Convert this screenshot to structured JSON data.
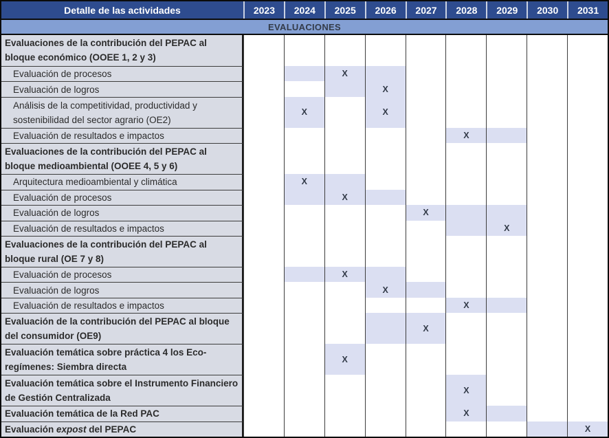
{
  "table": {
    "corner_label": "Detalle de las actividades",
    "years": [
      "2023",
      "2024",
      "2025",
      "2026",
      "2027",
      "2028",
      "2029",
      "2030",
      "2031"
    ],
    "banner": "EVALUACIONES",
    "mark": "X",
    "rows": [
      {
        "label": "Evaluaciones de la contribución del PEPAC al bloque económico (OOEE 1, 2 y 3)",
        "bold": true,
        "tall": true,
        "indent": false,
        "shaded": [],
        "marks": []
      },
      {
        "label": "Evaluación de procesos",
        "bold": false,
        "tall": false,
        "indent": true,
        "shaded": [
          "2024",
          "2025",
          "2026"
        ],
        "marks": [
          "2025"
        ]
      },
      {
        "label": "Evaluación de logros",
        "bold": false,
        "tall": false,
        "indent": true,
        "shaded": [
          "2025",
          "2026"
        ],
        "marks": [
          "2026"
        ]
      },
      {
        "label": "Análisis de la competitividad, productividad y sostenibilidad del sector agrario (OE2)",
        "bold": false,
        "tall": true,
        "indent": true,
        "shaded": [
          "2024",
          "2026"
        ],
        "marks": [
          "2024",
          "2026"
        ]
      },
      {
        "label": "Evaluación de resultados e impactos",
        "bold": false,
        "tall": false,
        "indent": true,
        "shaded": [
          "2028",
          "2029"
        ],
        "marks": [
          "2028"
        ]
      },
      {
        "label": "Evaluaciones de la contribución del PEPAC al bloque medioambiental (OOEE 4, 5 y 6)",
        "bold": true,
        "tall": true,
        "indent": false,
        "shaded": [],
        "marks": []
      },
      {
        "label": "Arquitectura medioambiental y climática",
        "bold": false,
        "tall": false,
        "indent": true,
        "shaded": [
          "2024",
          "2025"
        ],
        "marks": [
          "2024"
        ]
      },
      {
        "label": "Evaluación de procesos",
        "bold": false,
        "tall": false,
        "indent": true,
        "shaded": [
          "2024",
          "2025",
          "2026"
        ],
        "marks": [
          "2025"
        ]
      },
      {
        "label": "Evaluación de logros",
        "bold": false,
        "tall": false,
        "indent": true,
        "shaded": [
          "2027",
          "2028",
          "2029"
        ],
        "marks": [
          "2027"
        ]
      },
      {
        "label": "Evaluación de resultados e impactos",
        "bold": false,
        "tall": false,
        "indent": true,
        "shaded": [
          "2028",
          "2029"
        ],
        "marks": [
          "2029"
        ]
      },
      {
        "label": "Evaluaciones de la contribución del PEPAC al bloque rural (OE 7 y 8)",
        "bold": true,
        "tall": true,
        "indent": false,
        "shaded": [],
        "marks": []
      },
      {
        "label": "Evaluación de procesos",
        "bold": false,
        "tall": false,
        "indent": true,
        "shaded": [
          "2024",
          "2025",
          "2026"
        ],
        "marks": [
          "2025"
        ]
      },
      {
        "label": "Evaluación de logros",
        "bold": false,
        "tall": false,
        "indent": true,
        "shaded": [
          "2026",
          "2027"
        ],
        "marks": [
          "2026"
        ]
      },
      {
        "label": "Evaluación de resultados e impactos",
        "bold": false,
        "tall": false,
        "indent": true,
        "shaded": [
          "2028",
          "2029"
        ],
        "marks": [
          "2028"
        ]
      },
      {
        "label": "Evaluación de la contribución del PEPAC al bloque del consumidor (OE9)",
        "bold": true,
        "tall": true,
        "indent": false,
        "shaded": [
          "2026",
          "2027"
        ],
        "marks": [
          "2027"
        ]
      },
      {
        "label": "Evaluación temática sobre práctica 4 los Eco-regímenes: Siembra directa",
        "bold": true,
        "tall": true,
        "indent": false,
        "shaded": [
          "2025"
        ],
        "marks": [
          "2025"
        ]
      },
      {
        "label": "Evaluación temática sobre el Instrumento Financiero de Gestión Centralizada",
        "bold": true,
        "tall": true,
        "indent": false,
        "shaded": [
          "2028"
        ],
        "marks": [
          "2028"
        ]
      },
      {
        "label": "Evaluación temática de la Red PAC",
        "bold": true,
        "tall": false,
        "indent": false,
        "shaded": [
          "2028",
          "2029"
        ],
        "marks": [
          "2028"
        ]
      },
      {
        "label_runs": [
          {
            "text": "Evaluación ",
            "italic": false
          },
          {
            "text": "expost",
            "italic": true
          },
          {
            "text": " del PEPAC",
            "italic": false
          }
        ],
        "bold": true,
        "tall": false,
        "indent": false,
        "shaded": [
          "2030",
          "2031"
        ],
        "marks": [
          "2031"
        ]
      }
    ]
  },
  "colors": {
    "header_bg": "#2E4C8F",
    "banner_bg": "#839FD3",
    "left_col_bg": "#D8DBE4",
    "shaded_cell": "#DBDFF2",
    "grid_line": "#3C3C3C",
    "outer_border": "#0B0B0B",
    "text": "#2B2B2B",
    "mark": "#333B49"
  }
}
